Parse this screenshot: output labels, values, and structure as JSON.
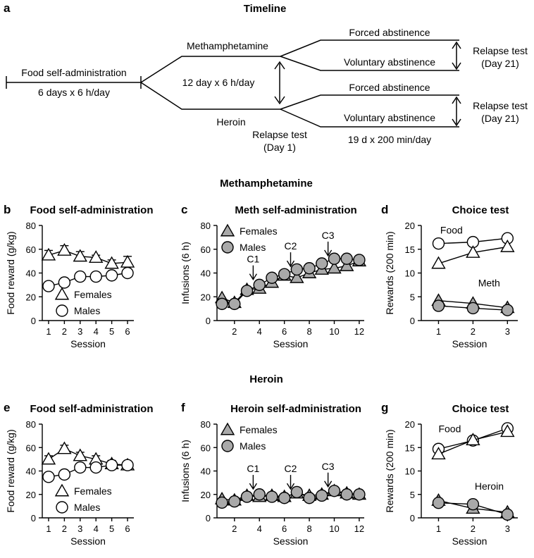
{
  "panel_letters": [
    "a",
    "b",
    "c",
    "d",
    "e",
    "f",
    "g"
  ],
  "section_titles": {
    "timeline": "Timeline",
    "meth": "Methamphetamine",
    "heroin": "Heroin"
  },
  "timeline": {
    "food_sa": "Food self-administration",
    "food_sa_dur": "6 days x 6 h/day",
    "meth": "Methamphetamine",
    "heroin": "Heroin",
    "drug_dur": "12 day x 6 h/day",
    "relapse1_line1": "Relapse test",
    "relapse1_line2": "(Day 1)",
    "forced": "Forced abstinence",
    "voluntary": "Voluntary abstinence",
    "relapse21_line1": "Relapse test",
    "relapse21_line2": "(Day 21)",
    "abst_dur": "19 d x 200 min/day"
  },
  "colors": {
    "grey_fill": "#a9a9a9",
    "line": "#000000",
    "open_fill": "#ffffff"
  },
  "chart_data": [
    {
      "id": "b",
      "type": "line",
      "title": "Food self-administration",
      "xlabel": "Session",
      "ylabel": "Food reward (g/kg)",
      "xlim": [
        0.6,
        6.4
      ],
      "ylim": [
        0,
        80
      ],
      "xticks": [
        1,
        2,
        3,
        4,
        5,
        6
      ],
      "yticks": [
        0,
        20,
        40,
        60,
        80
      ],
      "series": [
        {
          "name": "Females",
          "marker": "triangle",
          "fill": "open",
          "x": [
            1,
            2,
            3,
            4,
            5,
            6
          ],
          "y": [
            55,
            59,
            54,
            53,
            48,
            49
          ],
          "err": [
            4,
            4,
            4,
            2,
            3,
            5
          ]
        },
        {
          "name": "Males",
          "marker": "circle",
          "fill": "open",
          "x": [
            1,
            2,
            3,
            4,
            5,
            6
          ],
          "y": [
            29,
            32,
            37,
            37,
            38,
            40
          ],
          "err": [
            2,
            2,
            2,
            2,
            2,
            3
          ]
        }
      ],
      "legend": [
        {
          "label": "Females",
          "marker": "triangle",
          "fill": "open"
        },
        {
          "label": "Males",
          "marker": "circle",
          "fill": "open"
        }
      ],
      "annotations": []
    },
    {
      "id": "c",
      "type": "line",
      "title": "Meth self-administration",
      "xlabel": "Session",
      "ylabel": "Infusions (6 h)",
      "xlim": [
        0.6,
        12.4
      ],
      "ylim": [
        0,
        80
      ],
      "xticks": [
        2,
        4,
        6,
        8,
        10,
        12
      ],
      "yticks": [
        0,
        20,
        40,
        60,
        80
      ],
      "series": [
        {
          "name": "Females",
          "marker": "triangle",
          "fill": "grey",
          "x": [
            1,
            2,
            3,
            4,
            5,
            6,
            7,
            8,
            9,
            10,
            11,
            12
          ],
          "y": [
            19,
            15,
            26,
            27,
            32,
            38,
            36,
            40,
            43,
            44,
            46,
            50
          ],
          "err": []
        },
        {
          "name": "Males",
          "marker": "circle",
          "fill": "grey",
          "x": [
            1,
            2,
            3,
            4,
            5,
            6,
            7,
            8,
            9,
            10,
            11,
            12
          ],
          "y": [
            14,
            14,
            25,
            30,
            36,
            39,
            43,
            44,
            48,
            52,
            52,
            51
          ],
          "err": []
        }
      ],
      "legend": [
        {
          "label": "Females",
          "marker": "triangle",
          "fill": "grey"
        },
        {
          "label": "Males",
          "marker": "circle",
          "fill": "grey"
        }
      ],
      "annotations": [
        {
          "text": "C1",
          "x": 3.5,
          "y_tip": 31
        },
        {
          "text": "C2",
          "x": 6.5,
          "y_tip": 42
        },
        {
          "text": "C3",
          "x": 9.5,
          "y_tip": 51
        }
      ]
    },
    {
      "id": "d",
      "type": "line",
      "title": "Choice  test",
      "xlabel": "Session",
      "ylabel": "Rewards (200 min)",
      "xlim": [
        0.5,
        3.3
      ],
      "ylim": [
        0,
        20
      ],
      "xticks": [
        1,
        2,
        3
      ],
      "yticks": [
        0,
        5,
        10,
        15,
        20
      ],
      "series": [
        {
          "name": "Food",
          "marker": "circle",
          "fill": "open",
          "x": [
            1,
            2,
            3
          ],
          "y": [
            16.2,
            16.5,
            17.3
          ],
          "err": []
        },
        {
          "name": "Food",
          "marker": "triangle",
          "fill": "open",
          "x": [
            1,
            2,
            3
          ],
          "y": [
            12,
            14.3,
            15.5
          ],
          "err": []
        },
        {
          "name": "Meth",
          "marker": "triangle",
          "fill": "grey",
          "x": [
            1,
            2,
            3
          ],
          "y": [
            4.2,
            3.6,
            2.7
          ],
          "err": []
        },
        {
          "name": "Meth",
          "marker": "circle",
          "fill": "grey",
          "x": [
            1,
            2,
            3
          ],
          "y": [
            3.1,
            2.6,
            2.2
          ],
          "err": []
        }
      ],
      "legend": [],
      "annotations": [
        {
          "text": "Food",
          "x": 1.05,
          "y": 18.3
        },
        {
          "text": "Meth",
          "x": 2.15,
          "y": 7.2
        }
      ]
    },
    {
      "id": "e",
      "type": "line",
      "title": "Food self-administration",
      "xlabel": "Session",
      "ylabel": "Food reward (g/kg)",
      "xlim": [
        0.6,
        6.4
      ],
      "ylim": [
        0,
        80
      ],
      "xticks": [
        1,
        2,
        3,
        4,
        5,
        6
      ],
      "yticks": [
        0,
        20,
        40,
        60,
        80
      ],
      "series": [
        {
          "name": "Females",
          "marker": "triangle",
          "fill": "open",
          "x": [
            1,
            2,
            3,
            4,
            5,
            6
          ],
          "y": [
            50,
            59,
            53,
            50,
            46,
            45
          ],
          "err": [
            3,
            3,
            3,
            3,
            3,
            3
          ]
        },
        {
          "name": "Males",
          "marker": "circle",
          "fill": "open",
          "x": [
            1,
            2,
            3,
            4,
            5,
            6
          ],
          "y": [
            35,
            37,
            43,
            43,
            45,
            45
          ],
          "err": [
            2,
            2,
            3,
            3,
            3,
            3
          ]
        }
      ],
      "legend": [
        {
          "label": "Females",
          "marker": "triangle",
          "fill": "open"
        },
        {
          "label": "Males",
          "marker": "circle",
          "fill": "open"
        }
      ],
      "annotations": []
    },
    {
      "id": "f",
      "type": "line",
      "title": "Heroin self-administration",
      "xlabel": "Session",
      "ylabel": "Infusions (6 h)",
      "xlim": [
        0.6,
        12.4
      ],
      "ylim": [
        0,
        80
      ],
      "xticks": [
        2,
        4,
        6,
        8,
        10,
        12
      ],
      "yticks": [
        0,
        20,
        40,
        60,
        80
      ],
      "series": [
        {
          "name": "Females",
          "marker": "triangle",
          "fill": "grey",
          "x": [
            1,
            2,
            3,
            4,
            5,
            6,
            7,
            8,
            9,
            10,
            11,
            12
          ],
          "y": [
            16,
            15,
            19,
            18,
            19,
            18,
            21,
            19,
            20,
            23,
            21,
            20
          ],
          "err": []
        },
        {
          "name": "Males",
          "marker": "circle",
          "fill": "grey",
          "x": [
            1,
            2,
            3,
            4,
            5,
            6,
            7,
            8,
            9,
            10,
            11,
            12
          ],
          "y": [
            13,
            14,
            18,
            20,
            18,
            17,
            22,
            17,
            19,
            23,
            20,
            20
          ],
          "err": []
        }
      ],
      "legend": [
        {
          "label": "Females",
          "marker": "triangle",
          "fill": "grey"
        },
        {
          "label": "Males",
          "marker": "circle",
          "fill": "grey"
        }
      ],
      "annotations": [
        {
          "text": "C1",
          "x": 3.5,
          "y_tip": 21
        },
        {
          "text": "C2",
          "x": 6.5,
          "y_tip": 21
        },
        {
          "text": "C3",
          "x": 9.5,
          "y_tip": 23
        }
      ]
    },
    {
      "id": "g",
      "type": "line",
      "title": "Choice  test",
      "xlabel": "Session",
      "ylabel": "Rewards (200 min)",
      "xlim": [
        0.5,
        3.3
      ],
      "ylim": [
        0,
        20
      ],
      "xticks": [
        1,
        2,
        3
      ],
      "yticks": [
        0,
        5,
        10,
        15,
        20
      ],
      "series": [
        {
          "name": "Food",
          "marker": "circle",
          "fill": "open",
          "x": [
            1,
            2,
            3
          ],
          "y": [
            14.7,
            16.5,
            19.1
          ],
          "err": []
        },
        {
          "name": "Food",
          "marker": "triangle",
          "fill": "open",
          "x": [
            1,
            2,
            3
          ],
          "y": [
            13.6,
            16.6,
            18.4
          ],
          "err": []
        },
        {
          "name": "Heroin",
          "marker": "triangle",
          "fill": "grey",
          "x": [
            1,
            2,
            3
          ],
          "y": [
            3.7,
            2.0,
            1.2
          ],
          "err": []
        },
        {
          "name": "Heroin",
          "marker": "circle",
          "fill": "grey",
          "x": [
            1,
            2,
            3
          ],
          "y": [
            3.2,
            2.9,
            0.7
          ],
          "err": []
        }
      ],
      "legend": [],
      "annotations": [
        {
          "text": "Food",
          "x": 1.0,
          "y": 18.3
        },
        {
          "text": "Heroin",
          "x": 2.05,
          "y": 6.0
        }
      ]
    }
  ]
}
